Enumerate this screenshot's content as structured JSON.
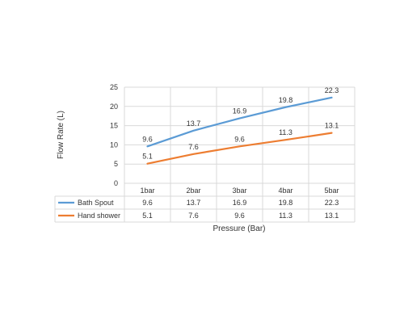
{
  "chart_data": {
    "type": "line",
    "categories": [
      "1bar",
      "2bar",
      "3bar",
      "4bar",
      "5bar"
    ],
    "series": [
      {
        "name": "Bath Spout",
        "values": [
          9.6,
          13.7,
          16.9,
          19.8,
          22.3
        ],
        "color": "#5b9bd5"
      },
      {
        "name": "Hand shower",
        "values": [
          5.1,
          7.6,
          9.6,
          11.3,
          13.1
        ],
        "color": "#ed7d31"
      }
    ],
    "xlabel": "Pressure (Bar)",
    "ylabel": "Flow Rate (L)",
    "ylim": [
      0,
      25
    ],
    "yticks": [
      0,
      5,
      10,
      15,
      20,
      25
    ],
    "grid": true,
    "legend": "data-table",
    "data_labels": true
  }
}
